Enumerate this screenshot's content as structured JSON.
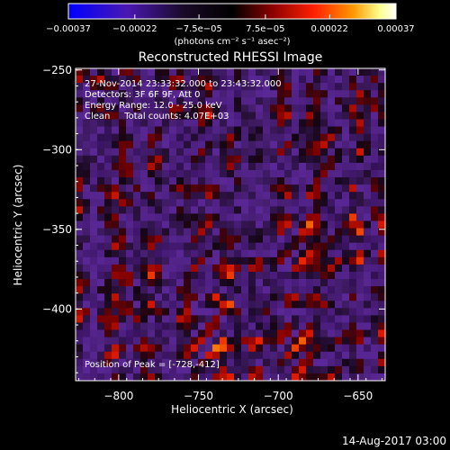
{
  "chart_data": {
    "type": "heatmap",
    "title": "Reconstructed RHESSI Image",
    "xlabel": "Heliocentric X (arcsec)",
    "ylabel": "Heliocentric Y (arcsec)",
    "xlim": [
      -827,
      -633
    ],
    "ylim": [
      -445,
      -249
    ],
    "x_ticks": [
      -800,
      -750,
      -700,
      -650
    ],
    "y_ticks": [
      -250,
      -300,
      -350,
      -400
    ],
    "x_tick_labels": [
      "−800",
      "−750",
      "−700",
      "−650"
    ],
    "y_tick_labels": [
      "−250",
      "−300",
      "−350",
      "−400"
    ],
    "colorbar": {
      "vmin": -0.00037,
      "vmax": 0.00037,
      "tick_values": [
        -0.00037,
        -0.00022,
        -7.5e-05,
        7.5e-05,
        0.00022,
        0.00037
      ],
      "tick_labels": [
        "−0.00037",
        "−0.00022",
        "−7.5e−05",
        "7.5e−05",
        "0.00022",
        "0.00037"
      ],
      "unit_label": "(photons cm⁻² s⁻¹ asec⁻²)",
      "colors": [
        "#0000ff",
        "#5a1a9a",
        "#1a0a20",
        "#000000",
        "#8a0000",
        "#ff2000",
        "#ff9a00",
        "#ffffa0",
        "#ffffff"
      ]
    },
    "annotations": [
      "27-Nov-2014 23:33:32.000 to 23:43:32.000",
      "Detectors: 3F 6F 9F, Att 0",
      "Energy Range: 12.0 - 25.0 keV",
      "Clean     Total counts: 4.07E+03"
    ],
    "peak_label": "Position of Peak = [-728,-412]",
    "peak": [
      -728,
      -412
    ],
    "grid": false
  },
  "footer": {
    "timestamp": "14-Aug-2017 03:00"
  }
}
